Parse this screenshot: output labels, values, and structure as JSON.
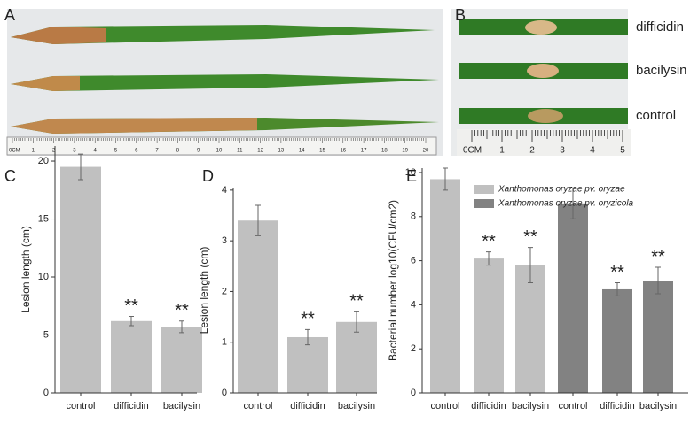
{
  "panels": [
    "A",
    "B",
    "C",
    "D",
    "E"
  ],
  "photo_a": {
    "ruler_unit": "0CM",
    "ruler_numbers": [
      "1",
      "2",
      "3",
      "4",
      "5",
      "6",
      "7",
      "8",
      "9",
      "10",
      "11",
      "12",
      "13",
      "14",
      "15",
      "16",
      "17",
      "18",
      "19",
      "20"
    ]
  },
  "photo_b": {
    "labels": [
      "difficidin",
      "bacilysin",
      "control"
    ],
    "ruler_unit": "0CM",
    "ruler_numbers": [
      "1",
      "2",
      "3",
      "4",
      "5"
    ]
  },
  "chart_data": [
    {
      "type": "bar",
      "y_label": "Lesion length (cm)",
      "categories": [
        "control",
        "difficidin",
        "bacilysin"
      ],
      "values": [
        19.5,
        6.2,
        5.7
      ],
      "errors": [
        1.1,
        0.4,
        0.5
      ],
      "annotations": [
        null,
        "**",
        "**"
      ],
      "color": "#c0c0c0",
      "ylim": [
        0,
        21.3
      ],
      "yticks": [
        0,
        5,
        10,
        15,
        20
      ]
    },
    {
      "type": "bar",
      "y_label": "Lesion length (cm)",
      "categories": [
        "control",
        "difficidin",
        "bacilysin"
      ],
      "values": [
        3.4,
        1.1,
        1.4
      ],
      "errors": [
        0.3,
        0.15,
        0.2
      ],
      "annotations": [
        null,
        "**",
        "**"
      ],
      "color": "#c0c0c0",
      "ylim": [
        0,
        4.05
      ],
      "yticks": [
        0,
        1,
        2,
        3,
        4
      ]
    },
    {
      "type": "bar",
      "y_label": "Bacterial number  log10(CFU/cm2)",
      "categories": [
        "control",
        "difficidin",
        "bacilysin",
        "control",
        "difficidin",
        "bacilysin"
      ],
      "series": [
        {
          "name": "Xanthomonas oryzae pv. oryzae",
          "color": "#c0c0c0",
          "values": [
            9.7,
            6.1,
            5.8,
            null,
            null,
            null
          ],
          "errors": [
            0.5,
            0.3,
            0.8,
            null,
            null,
            null
          ]
        },
        {
          "name": "Xanthomonas oryzae pv. oryzicola",
          "color": "#828282",
          "values": [
            null,
            null,
            null,
            8.6,
            4.7,
            5.1
          ],
          "errors": [
            null,
            null,
            null,
            0.7,
            0.3,
            0.6
          ]
        }
      ],
      "annotations": [
        null,
        "**",
        "**",
        null,
        "**",
        "**"
      ],
      "ylim": [
        0,
        10.2
      ],
      "yticks": [
        0,
        2,
        4,
        6,
        8,
        10
      ]
    }
  ]
}
